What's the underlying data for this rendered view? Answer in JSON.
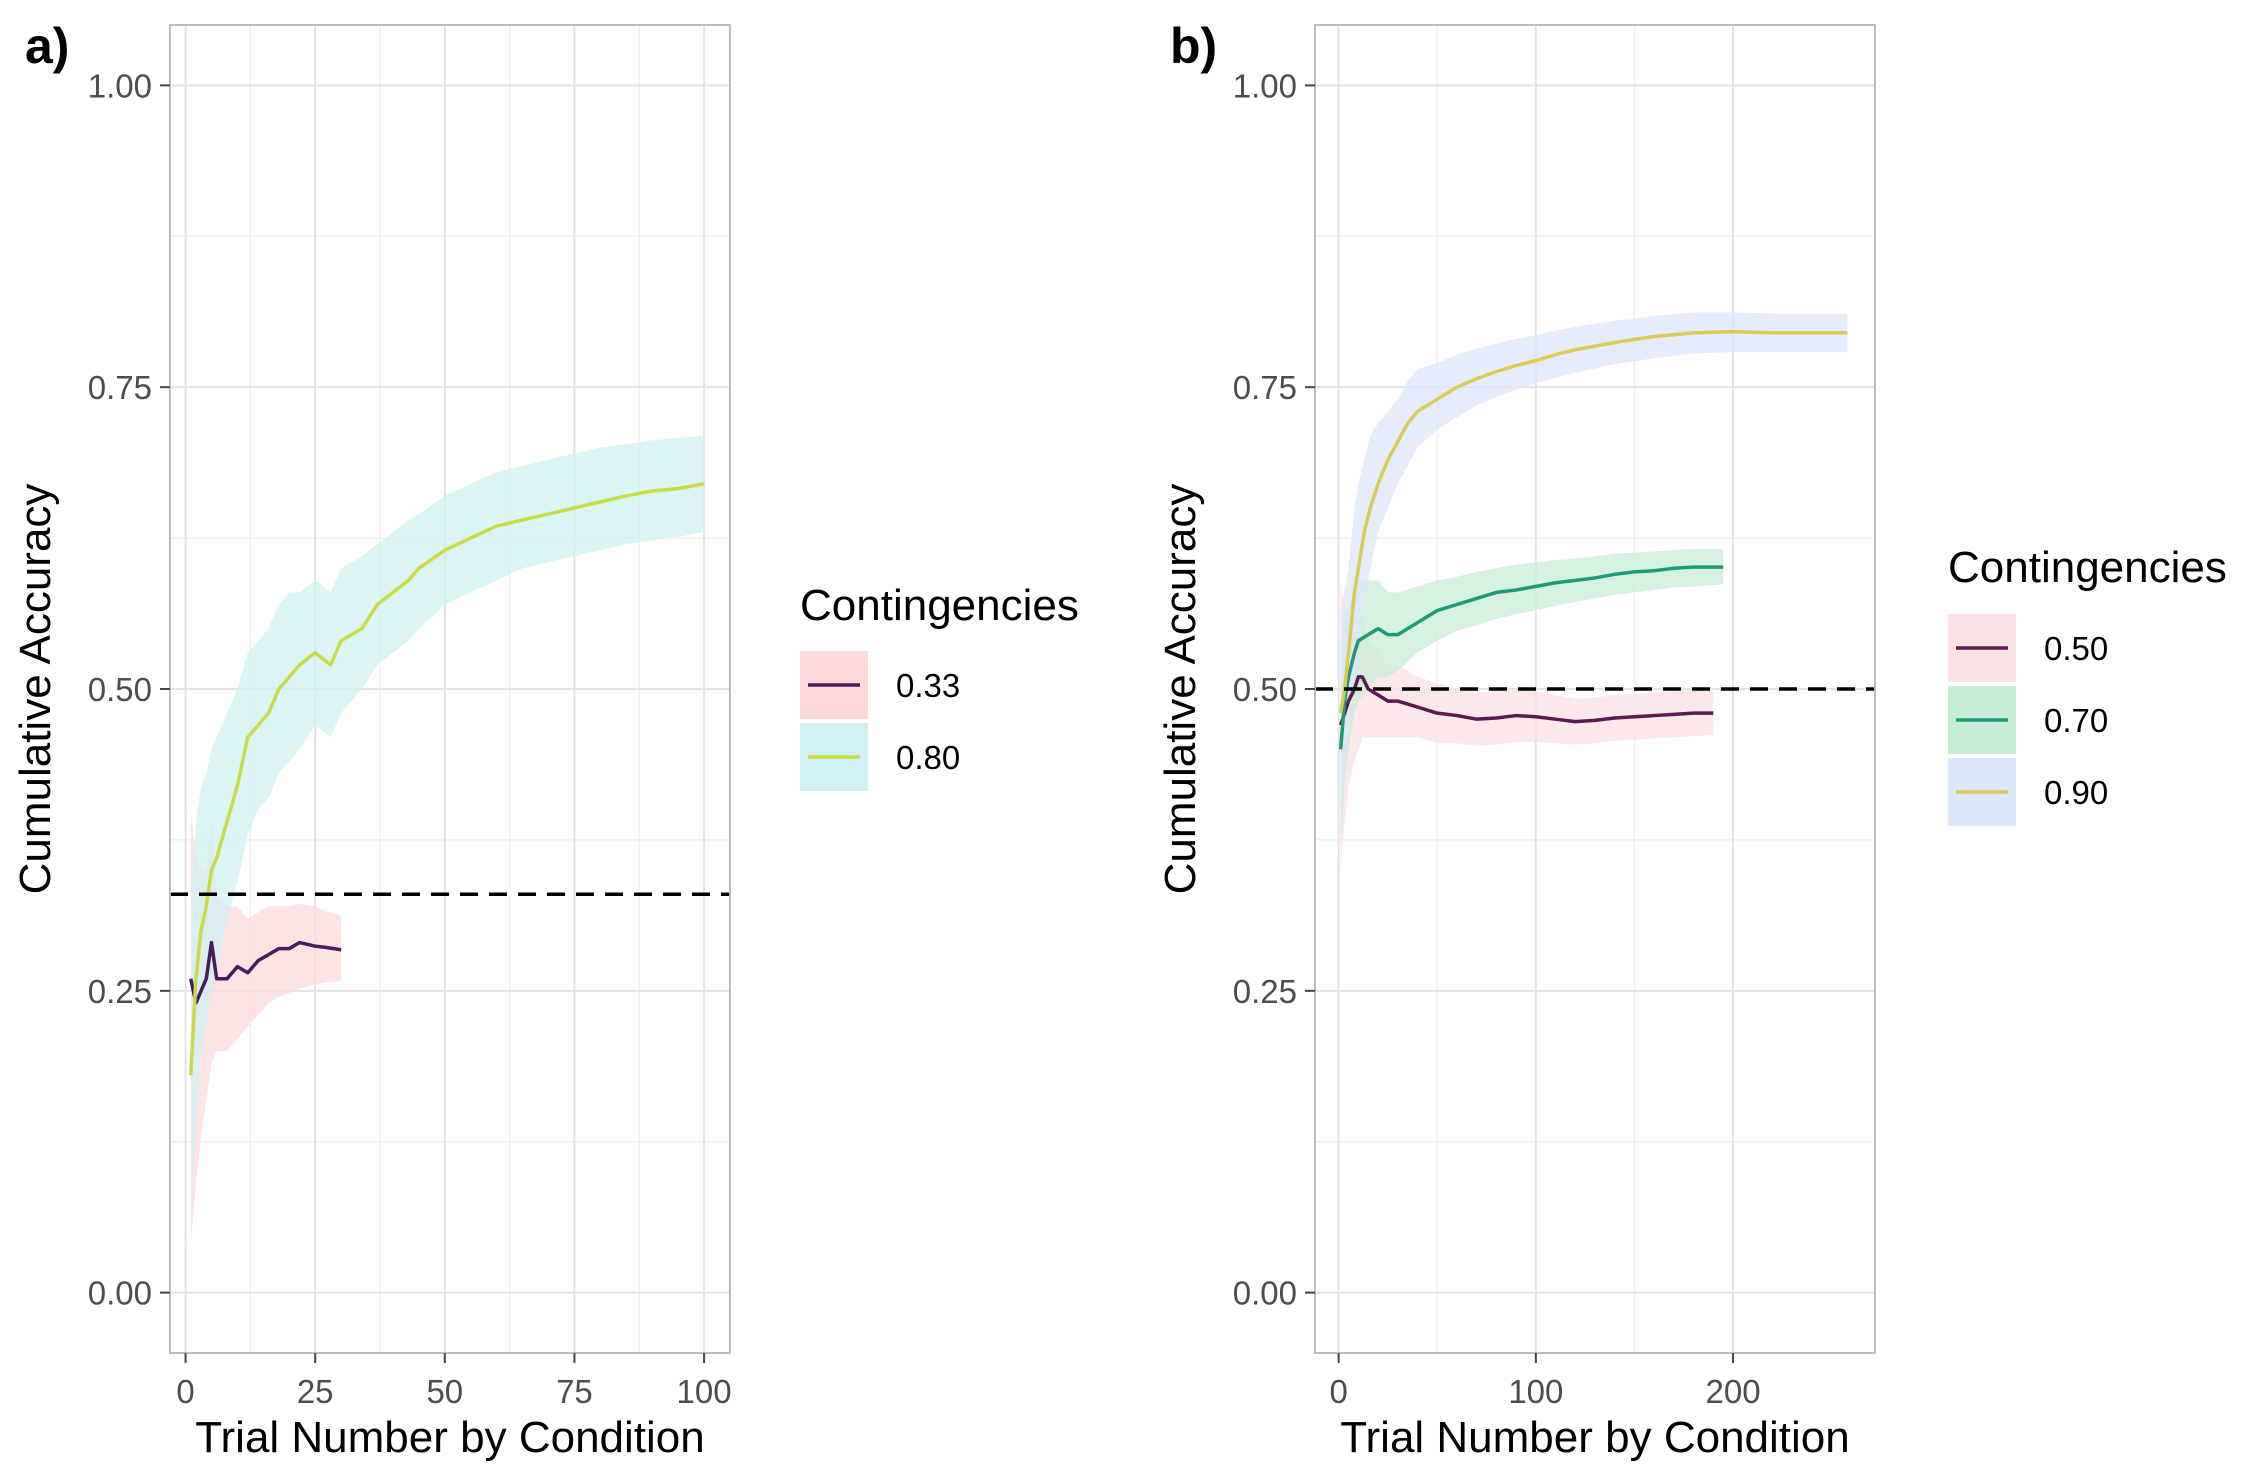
{
  "chart_data": [
    {
      "type": "line",
      "panel_label": "a)",
      "xlabel": "Trial Number by Condition",
      "ylabel": "Cumulative Accuracy",
      "xlim": [
        -3,
        105
      ],
      "ylim": [
        -0.05,
        1.05
      ],
      "xticks": [
        0,
        25,
        50,
        75,
        100
      ],
      "xtick_labels": [
        "0",
        "25",
        "50",
        "75",
        "100"
      ],
      "yticks": [
        0,
        0.25,
        0.5,
        0.75,
        1.0
      ],
      "ytick_labels": [
        "0.00",
        "0.25",
        "0.50",
        "0.75",
        "1.00"
      ],
      "grid": true,
      "reference_line": {
        "y": 0.33,
        "style": "dashed"
      },
      "legend": {
        "title": "Contingencies",
        "position": "right"
      },
      "series": [
        {
          "name": "0.33",
          "color": "#4a1a5c",
          "ribbon_color": "#fdd9dc",
          "x": [
            1,
            2,
            3,
            4,
            5,
            6,
            8,
            10,
            12,
            14,
            16,
            18,
            20,
            22,
            25,
            27,
            30
          ],
          "y": [
            0.26,
            0.24,
            0.25,
            0.26,
            0.29,
            0.26,
            0.26,
            0.27,
            0.265,
            0.275,
            0.28,
            0.285,
            0.285,
            0.29,
            0.287,
            0.286,
            0.284
          ],
          "lower": [
            0.04,
            0.09,
            0.13,
            0.16,
            0.19,
            0.2,
            0.2,
            0.21,
            0.22,
            0.23,
            0.24,
            0.245,
            0.248,
            0.252,
            0.255,
            0.257,
            0.258
          ],
          "upper": [
            0.4,
            0.36,
            0.35,
            0.35,
            0.39,
            0.33,
            0.32,
            0.32,
            0.31,
            0.315,
            0.32,
            0.32,
            0.32,
            0.322,
            0.32,
            0.316,
            0.312
          ]
        },
        {
          "name": "0.80",
          "color": "#c9dc45",
          "ribbon_color": "#cff1f1",
          "x": [
            1,
            2,
            3,
            4,
            5,
            6,
            8,
            10,
            12,
            14,
            16,
            18,
            20,
            22,
            25,
            28,
            30,
            34,
            37,
            40,
            43,
            45,
            50,
            55,
            60,
            65,
            70,
            75,
            80,
            85,
            90,
            95,
            100
          ],
          "y": [
            0.18,
            0.26,
            0.3,
            0.32,
            0.35,
            0.36,
            0.39,
            0.42,
            0.46,
            0.47,
            0.48,
            0.5,
            0.51,
            0.52,
            0.53,
            0.52,
            0.54,
            0.55,
            0.57,
            0.58,
            0.59,
            0.6,
            0.615,
            0.625,
            0.635,
            0.64,
            0.645,
            0.65,
            0.655,
            0.66,
            0.664,
            0.666,
            0.67
          ],
          "lower": [
            0.05,
            0.14,
            0.2,
            0.22,
            0.25,
            0.27,
            0.31,
            0.34,
            0.38,
            0.4,
            0.41,
            0.43,
            0.44,
            0.45,
            0.47,
            0.46,
            0.48,
            0.5,
            0.52,
            0.53,
            0.54,
            0.55,
            0.57,
            0.58,
            0.59,
            0.6,
            0.605,
            0.61,
            0.615,
            0.62,
            0.623,
            0.626,
            0.63
          ],
          "upper": [
            0.32,
            0.39,
            0.42,
            0.43,
            0.45,
            0.46,
            0.48,
            0.5,
            0.53,
            0.54,
            0.55,
            0.57,
            0.58,
            0.58,
            0.59,
            0.58,
            0.6,
            0.61,
            0.62,
            0.63,
            0.64,
            0.645,
            0.66,
            0.67,
            0.68,
            0.685,
            0.69,
            0.695,
            0.7,
            0.703,
            0.706,
            0.708,
            0.71
          ]
        }
      ]
    },
    {
      "type": "line",
      "panel_label": "b)",
      "xlabel": "Trial Number by Condition",
      "ylabel": "Cumulative Accuracy",
      "xlim": [
        -12,
        272
      ],
      "ylim": [
        -0.05,
        1.05
      ],
      "xticks": [
        0,
        100,
        200
      ],
      "xtick_labels": [
        "0",
        "100",
        "200"
      ],
      "yticks": [
        0,
        0.25,
        0.5,
        0.75,
        1.0
      ],
      "ytick_labels": [
        "0.00",
        "0.25",
        "0.50",
        "0.75",
        "1.00"
      ],
      "grid": true,
      "reference_line": {
        "y": 0.5,
        "style": "dashed"
      },
      "legend": {
        "title": "Contingencies",
        "position": "right"
      },
      "series": [
        {
          "name": "0.50",
          "color": "#5c1a4e",
          "ribbon_color": "#fbe0e4",
          "x": [
            1,
            3,
            5,
            8,
            10,
            12,
            15,
            20,
            25,
            30,
            40,
            50,
            60,
            70,
            80,
            90,
            100,
            110,
            120,
            130,
            140,
            150,
            160,
            170,
            180,
            190
          ],
          "y": [
            0.47,
            0.48,
            0.49,
            0.5,
            0.51,
            0.51,
            0.5,
            0.495,
            0.49,
            0.49,
            0.485,
            0.48,
            0.478,
            0.475,
            0.476,
            0.478,
            0.477,
            0.475,
            0.473,
            0.474,
            0.476,
            0.477,
            0.478,
            0.479,
            0.48,
            0.48
          ],
          "lower": [
            0.35,
            0.39,
            0.42,
            0.44,
            0.45,
            0.46,
            0.46,
            0.46,
            0.46,
            0.46,
            0.46,
            0.455,
            0.455,
            0.453,
            0.454,
            0.456,
            0.456,
            0.455,
            0.454,
            0.455,
            0.457,
            0.458,
            0.459,
            0.46,
            0.461,
            0.462
          ],
          "upper": [
            0.59,
            0.57,
            0.56,
            0.56,
            0.56,
            0.56,
            0.54,
            0.53,
            0.52,
            0.52,
            0.51,
            0.505,
            0.5,
            0.497,
            0.498,
            0.5,
            0.498,
            0.495,
            0.492,
            0.493,
            0.495,
            0.496,
            0.497,
            0.498,
            0.499,
            0.498
          ]
        },
        {
          "name": "0.70",
          "color": "#1e9a75",
          "ribbon_color": "#c8ecd6",
          "x": [
            1,
            3,
            5,
            8,
            10,
            15,
            20,
            25,
            30,
            40,
            50,
            60,
            70,
            80,
            90,
            100,
            110,
            120,
            130,
            140,
            150,
            160,
            170,
            180,
            190,
            195
          ],
          "y": [
            0.45,
            0.49,
            0.51,
            0.53,
            0.54,
            0.545,
            0.55,
            0.545,
            0.545,
            0.555,
            0.565,
            0.57,
            0.575,
            0.58,
            0.582,
            0.585,
            0.588,
            0.59,
            0.592,
            0.595,
            0.597,
            0.598,
            0.6,
            0.601,
            0.601,
            0.601
          ],
          "lower": [
            0.37,
            0.42,
            0.45,
            0.48,
            0.49,
            0.5,
            0.51,
            0.51,
            0.515,
            0.53,
            0.54,
            0.548,
            0.553,
            0.558,
            0.562,
            0.565,
            0.569,
            0.572,
            0.575,
            0.578,
            0.58,
            0.582,
            0.584,
            0.585,
            0.586,
            0.587
          ],
          "upper": [
            0.54,
            0.56,
            0.57,
            0.58,
            0.59,
            0.59,
            0.59,
            0.58,
            0.58,
            0.585,
            0.59,
            0.593,
            0.597,
            0.6,
            0.603,
            0.605,
            0.607,
            0.608,
            0.61,
            0.612,
            0.613,
            0.614,
            0.615,
            0.616,
            0.616,
            0.616
          ]
        },
        {
          "name": "0.90",
          "color": "#d8cc55",
          "ribbon_color": "#dee6fa",
          "x": [
            1,
            3,
            5,
            8,
            10,
            13,
            16,
            20,
            25,
            30,
            35,
            40,
            50,
            60,
            70,
            80,
            90,
            100,
            110,
            120,
            140,
            160,
            180,
            200,
            220,
            240,
            258
          ],
          "y": [
            0.48,
            0.5,
            0.53,
            0.58,
            0.6,
            0.63,
            0.65,
            0.67,
            0.69,
            0.705,
            0.72,
            0.73,
            0.74,
            0.75,
            0.757,
            0.763,
            0.768,
            0.772,
            0.777,
            0.781,
            0.787,
            0.792,
            0.795,
            0.796,
            0.795,
            0.795,
            0.795
          ],
          "lower": [
            0.4,
            0.43,
            0.46,
            0.51,
            0.54,
            0.57,
            0.6,
            0.63,
            0.65,
            0.67,
            0.685,
            0.7,
            0.715,
            0.725,
            0.735,
            0.742,
            0.748,
            0.753,
            0.758,
            0.762,
            0.769,
            0.774,
            0.778,
            0.779,
            0.779,
            0.779,
            0.779
          ],
          "upper": [
            0.56,
            0.58,
            0.6,
            0.65,
            0.67,
            0.69,
            0.71,
            0.72,
            0.73,
            0.74,
            0.755,
            0.765,
            0.77,
            0.777,
            0.782,
            0.786,
            0.79,
            0.793,
            0.797,
            0.8,
            0.805,
            0.809,
            0.812,
            0.812,
            0.811,
            0.811,
            0.811
          ]
        }
      ]
    }
  ]
}
